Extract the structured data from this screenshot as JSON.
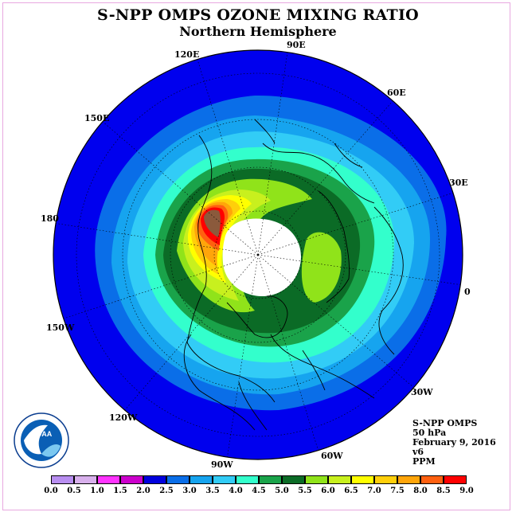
{
  "title": "S-NPP OMPS OZONE MIXING RATIO",
  "subtitle": "Northern Hemisphere",
  "lon_labels": {
    "lon_90e": "90E",
    "lon_60e": "60E",
    "lon_30e": "30E",
    "lon_0": "0",
    "lon_30w": "30W",
    "lon_60w": "60W",
    "lon_90w": "90W",
    "lon_120w": "120W",
    "lon_150w": "150W",
    "lon_180": "180",
    "lon_150e": "150E",
    "lon_120e": "120E"
  },
  "info": {
    "instrument": "S-NPP OMPS",
    "level": "50 hPa",
    "date": "February 9, 2016",
    "version": "v6",
    "units": "PPM"
  },
  "logo": {
    "text": "NOAA",
    "ring_text": "NATIONAL OCEANIC AND ATMOSPHERIC ADMINISTRATION · U.S. DEPARTMENT OF COMMERCE"
  },
  "legend": {
    "labels": [
      "0.0",
      "0.5",
      "1.0",
      "1.5",
      "2.0",
      "2.5",
      "3.0",
      "3.5",
      "4.0",
      "4.5",
      "5.0",
      "5.5",
      "6.0",
      "6.5",
      "7.0",
      "7.5",
      "8.0",
      "8.5",
      "9.0"
    ],
    "colors": [
      "#b88ef0",
      "#d8b0ec",
      "#ff33ff",
      "#cc00cc",
      "#0000dd",
      "#0a6ee8",
      "#16a4ef",
      "#32ccf6",
      "#33ffcc",
      "#1aa34a",
      "#0b6b26",
      "#90e31a",
      "#c8f01e",
      "#ffff00",
      "#ffcf0a",
      "#ffa50a",
      "#ff6010",
      "#ff0000",
      "#8b5a3c"
    ]
  },
  "map": {
    "background_color": "#0000ee",
    "polar_night_color": "#ffffff",
    "contour_colors": {
      "c25": "#0a6ee8",
      "c30": "#16a4ef",
      "c35": "#32ccf6",
      "c40": "#33ffcc",
      "c45": "#1aa34a",
      "c50": "#0b6b26",
      "c55": "#90e31a",
      "c60": "#c8f01e",
      "c65": "#ffff00",
      "c70": "#ffcf0a",
      "c75": "#ffa50a",
      "c80": "#ff6010",
      "c85": "#ff0000",
      "c90": "#8b5a3c"
    }
  }
}
